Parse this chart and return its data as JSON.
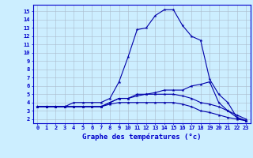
{
  "hours": [
    0,
    1,
    2,
    3,
    4,
    5,
    6,
    7,
    8,
    9,
    10,
    11,
    12,
    13,
    14,
    15,
    16,
    17,
    18,
    19,
    20,
    21,
    22,
    23
  ],
  "line1": [
    3.5,
    3.5,
    3.5,
    3.5,
    4.0,
    4.0,
    4.0,
    4.0,
    4.5,
    6.5,
    9.5,
    12.8,
    13.0,
    14.5,
    15.2,
    15.2,
    13.3,
    12.0,
    11.5,
    6.8,
    5.0,
    4.0,
    2.2,
    1.8
  ],
  "line2": [
    3.5,
    3.5,
    3.5,
    3.5,
    3.5,
    3.5,
    3.5,
    3.5,
    4.0,
    4.5,
    4.5,
    5.0,
    5.0,
    5.2,
    5.5,
    5.5,
    5.5,
    6.0,
    6.2,
    6.5,
    4.0,
    3.0,
    2.2,
    1.8
  ],
  "line3": [
    3.5,
    3.5,
    3.5,
    3.5,
    3.5,
    3.5,
    3.5,
    3.5,
    4.0,
    4.5,
    4.5,
    4.8,
    5.0,
    5.0,
    5.0,
    5.0,
    4.8,
    4.5,
    4.0,
    3.8,
    3.5,
    3.0,
    2.5,
    2.0
  ],
  "line4": [
    3.5,
    3.5,
    3.5,
    3.5,
    3.5,
    3.5,
    3.5,
    3.5,
    3.8,
    4.0,
    4.0,
    4.0,
    4.0,
    4.0,
    4.0,
    4.0,
    3.8,
    3.5,
    3.0,
    2.8,
    2.5,
    2.2,
    2.0,
    1.8
  ],
  "line_color": "#0000aa",
  "bg_color": "#cceeff",
  "grid_color": "#aabbcc",
  "xlabel": "Graphe des températures (°c)",
  "xlabel_color": "#0000cc",
  "ylabel_ticks": [
    2,
    3,
    4,
    5,
    6,
    7,
    8,
    9,
    10,
    11,
    12,
    13,
    14,
    15
  ],
  "xlim": [
    -0.5,
    23.5
  ],
  "ylim": [
    1.5,
    15.8
  ],
  "marker": "*",
  "marker_size": 3.0,
  "linewidth": 0.8,
  "tick_fontsize": 5.0,
  "xlabel_fontsize": 6.5
}
